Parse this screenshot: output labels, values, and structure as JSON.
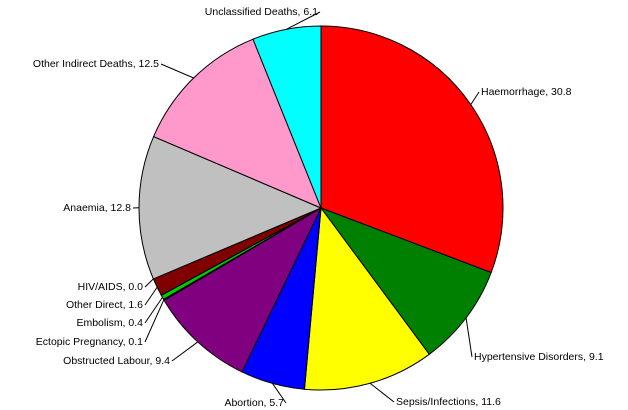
{
  "chart_data": {
    "type": "pie",
    "categories": [
      "Haemorrhage, 30.8",
      "Hypertensive Disorders, 9.1",
      "Sepsis/Infections, 11.6",
      "Abortion, 5.7",
      "Obstructed Labour, 9.4",
      "Ectopic Pregnancy, 0.1",
      "Embolism, 0.4",
      "Other Direct, 1.6",
      "HIV/AIDS, 0.0",
      "Anaemia, 12.8",
      "Other Indirect Deaths, 12.5",
      "Unclassified Deaths, 6.1"
    ],
    "values": [
      30.8,
      9.1,
      11.6,
      5.7,
      9.4,
      0.1,
      0.4,
      1.6,
      0.0,
      12.8,
      12.5,
      6.1
    ],
    "colors": [
      "#ff0000",
      "#008000",
      "#ffff00",
      "#0000ff",
      "#800080",
      "#000080",
      "#00cc00",
      "#800000",
      "#ffffff",
      "#c0c0c0",
      "#ff99cc",
      "#00ffff"
    ]
  }
}
